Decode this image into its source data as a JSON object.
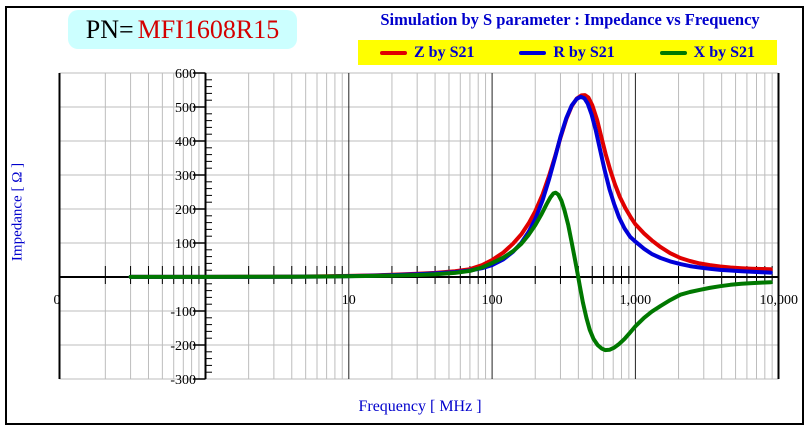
{
  "header": {
    "pn_prefix": "PN=",
    "pn_value": "MFI1608R15",
    "title": "Simulation by S parameter : Impedance vs Frequency"
  },
  "colors": {
    "pn_box_bg": "#CCFFFF",
    "pn_value_red": "#D40000",
    "title_blue": "#0000CC",
    "legend_bg": "#FFFF00",
    "grid_minor": "#BDBDBD",
    "grid_major": "#222222",
    "axis_black": "#000000"
  },
  "chart_data": {
    "type": "line",
    "title": "Simulation by S parameter : Impedance vs Frequency",
    "legend_position": "top",
    "grid": true,
    "x_axis": {
      "label": "Frequency [ MHz ]",
      "scale": "log",
      "min": 0.1,
      "max": 10000,
      "ticks": [
        {
          "value": 0.1,
          "label": "0"
        },
        {
          "value": 10,
          "label": "10"
        },
        {
          "value": 100,
          "label": "100"
        },
        {
          "value": 1000,
          "label": "1,000"
        },
        {
          "value": 10000,
          "label": "10,000"
        }
      ]
    },
    "y_axis": {
      "label": "Impedance [ Ω ]",
      "min": -300,
      "max": 600,
      "major_step": 100,
      "minor_step": 20,
      "ticks": [
        {
          "value": 600,
          "label": "600"
        },
        {
          "value": 500,
          "label": "500"
        },
        {
          "value": 400,
          "label": "400"
        },
        {
          "value": 300,
          "label": "300"
        },
        {
          "value": 200,
          "label": "200"
        },
        {
          "value": 100,
          "label": "100"
        },
        {
          "value": -100,
          "label": "-100"
        },
        {
          "value": -200,
          "label": "-200"
        },
        {
          "value": -300,
          "label": "-300"
        }
      ]
    },
    "series": [
      {
        "name": "Z by S21",
        "color": "#E00000",
        "points": [
          [
            0.3,
            0.3
          ],
          [
            0.5,
            0.3
          ],
          [
            1,
            0.4
          ],
          [
            2,
            0.6
          ],
          [
            4,
            1.2
          ],
          [
            7,
            2.2
          ],
          [
            10,
            3.2
          ],
          [
            15,
            4.8
          ],
          [
            20,
            6.5
          ],
          [
            30,
            9.5
          ],
          [
            40,
            12
          ],
          [
            55,
            17
          ],
          [
            70,
            23
          ],
          [
            85,
            35
          ],
          [
            100,
            50
          ],
          [
            120,
            72
          ],
          [
            140,
            98
          ],
          [
            160,
            126
          ],
          [
            180,
            158
          ],
          [
            200,
            193
          ],
          [
            225,
            243
          ],
          [
            250,
            298
          ],
          [
            275,
            355
          ],
          [
            300,
            410
          ],
          [
            330,
            465
          ],
          [
            360,
            503
          ],
          [
            390,
            525
          ],
          [
            420,
            534
          ],
          [
            445,
            535
          ],
          [
            470,
            528
          ],
          [
            500,
            505
          ],
          [
            540,
            462
          ],
          [
            580,
            410
          ],
          [
            620,
            362
          ],
          [
            670,
            312
          ],
          [
            720,
            272
          ],
          [
            780,
            235
          ],
          [
            850,
            203
          ],
          [
            930,
            175
          ],
          [
            1000,
            155
          ],
          [
            1150,
            128
          ],
          [
            1300,
            108
          ],
          [
            1500,
            88
          ],
          [
            1750,
            70
          ],
          [
            2060,
            56
          ],
          [
            2400,
            47
          ],
          [
            2800,
            40
          ],
          [
            3300,
            35
          ],
          [
            3900,
            31
          ],
          [
            4600,
            28
          ],
          [
            5500,
            26
          ],
          [
            6500,
            24.5
          ],
          [
            7600,
            23.5
          ],
          [
            8800,
            23
          ]
        ]
      },
      {
        "name": "R by S21",
        "color": "#0000D8",
        "points": [
          [
            0.3,
            0.2
          ],
          [
            0.5,
            0.2
          ],
          [
            1,
            0.25
          ],
          [
            2,
            0.4
          ],
          [
            4,
            0.8
          ],
          [
            7,
            1.5
          ],
          [
            10,
            2.5
          ],
          [
            15,
            4
          ],
          [
            20,
            5.5
          ],
          [
            30,
            8
          ],
          [
            40,
            10.5
          ],
          [
            55,
            14.5
          ],
          [
            70,
            19
          ],
          [
            85,
            26
          ],
          [
            100,
            35
          ],
          [
            120,
            52
          ],
          [
            140,
            74
          ],
          [
            160,
            101
          ],
          [
            180,
            133
          ],
          [
            200,
            170
          ],
          [
            225,
            226
          ],
          [
            250,
            288
          ],
          [
            275,
            352
          ],
          [
            300,
            413
          ],
          [
            330,
            468
          ],
          [
            360,
            505
          ],
          [
            390,
            524
          ],
          [
            415,
            530
          ],
          [
            440,
            526
          ],
          [
            465,
            510
          ],
          [
            495,
            478
          ],
          [
            530,
            430
          ],
          [
            570,
            370
          ],
          [
            610,
            315
          ],
          [
            660,
            258
          ],
          [
            710,
            215
          ],
          [
            770,
            175
          ],
          [
            840,
            143
          ],
          [
            920,
            118
          ],
          [
            1000,
            104
          ],
          [
            1150,
            83
          ],
          [
            1300,
            68
          ],
          [
            1500,
            56
          ],
          [
            1750,
            46
          ],
          [
            2060,
            38
          ],
          [
            2400,
            32
          ],
          [
            2800,
            28
          ],
          [
            3300,
            24
          ],
          [
            3900,
            21
          ],
          [
            4600,
            19
          ],
          [
            5500,
            17
          ],
          [
            6500,
            15.5
          ],
          [
            7600,
            14
          ],
          [
            8800,
            13
          ]
        ]
      },
      {
        "name": "X by S21",
        "color": "#007800",
        "points": [
          [
            0.3,
            0.15
          ],
          [
            0.5,
            0.2
          ],
          [
            1,
            0.3
          ],
          [
            2,
            0.5
          ],
          [
            4,
            0.9
          ],
          [
            7,
            1.5
          ],
          [
            10,
            2.2
          ],
          [
            15,
            3.2
          ],
          [
            20,
            4.2
          ],
          [
            30,
            6
          ],
          [
            40,
            8
          ],
          [
            55,
            12
          ],
          [
            70,
            18
          ],
          [
            85,
            28
          ],
          [
            100,
            41
          ],
          [
            120,
            57
          ],
          [
            140,
            76
          ],
          [
            160,
            98
          ],
          [
            180,
            124
          ],
          [
            200,
            152
          ],
          [
            220,
            183
          ],
          [
            240,
            214
          ],
          [
            255,
            234
          ],
          [
            268,
            246
          ],
          [
            278,
            248
          ],
          [
            290,
            242
          ],
          [
            305,
            224
          ],
          [
            320,
            196
          ],
          [
            340,
            152
          ],
          [
            360,
            100
          ],
          [
            380,
            48
          ],
          [
            395,
            10
          ],
          [
            410,
            -28
          ],
          [
            430,
            -75
          ],
          [
            455,
            -120
          ],
          [
            480,
            -155
          ],
          [
            510,
            -182
          ],
          [
            545,
            -200
          ],
          [
            580,
            -210
          ],
          [
            615,
            -215
          ],
          [
            660,
            -214
          ],
          [
            710,
            -208
          ],
          [
            770,
            -197
          ],
          [
            840,
            -182
          ],
          [
            920,
            -163
          ],
          [
            1000,
            -145
          ],
          [
            1150,
            -120
          ],
          [
            1300,
            -102
          ],
          [
            1500,
            -85
          ],
          [
            1750,
            -68
          ],
          [
            2060,
            -52
          ],
          [
            2400,
            -44
          ],
          [
            2800,
            -38
          ],
          [
            3300,
            -32
          ],
          [
            3900,
            -27
          ],
          [
            4600,
            -23
          ],
          [
            5500,
            -20
          ],
          [
            6500,
            -18
          ],
          [
            7600,
            -16.5
          ],
          [
            8800,
            -15.5
          ]
        ]
      }
    ]
  }
}
